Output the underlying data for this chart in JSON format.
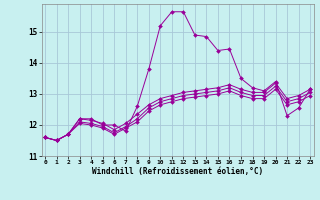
{
  "xlabel": "Windchill (Refroidissement éolien,°C)",
  "background_color": "#c8f0f0",
  "grid_color": "#a8c8d8",
  "line_color": "#990099",
  "x_ticks": [
    0,
    1,
    2,
    3,
    4,
    5,
    6,
    7,
    8,
    9,
    10,
    11,
    12,
    13,
    14,
    15,
    16,
    17,
    18,
    19,
    20,
    21,
    22,
    23
  ],
  "y_ticks": [
    11,
    12,
    13,
    14,
    15
  ],
  "ylim": [
    11.0,
    15.9
  ],
  "xlim": [
    -0.3,
    23.3
  ],
  "lines": [
    [
      11.6,
      11.5,
      11.7,
      12.2,
      12.2,
      12.0,
      12.0,
      11.8,
      12.6,
      13.8,
      15.2,
      15.65,
      15.65,
      14.9,
      14.85,
      14.4,
      14.45,
      13.5,
      13.2,
      13.1,
      13.4,
      12.3,
      12.55,
      13.15
    ],
    [
      11.6,
      11.5,
      11.7,
      12.2,
      12.15,
      12.05,
      11.85,
      12.05,
      12.35,
      12.65,
      12.85,
      12.95,
      13.05,
      13.1,
      13.15,
      13.2,
      13.3,
      13.15,
      13.05,
      13.05,
      13.35,
      12.85,
      12.95,
      13.15
    ],
    [
      11.6,
      11.5,
      11.7,
      12.1,
      12.05,
      11.95,
      11.75,
      11.95,
      12.2,
      12.55,
      12.75,
      12.85,
      12.95,
      13.0,
      13.05,
      13.1,
      13.2,
      13.05,
      12.95,
      12.95,
      13.25,
      12.75,
      12.85,
      13.05
    ],
    [
      11.6,
      11.5,
      11.7,
      12.05,
      12.0,
      11.9,
      11.7,
      11.9,
      12.1,
      12.45,
      12.65,
      12.75,
      12.85,
      12.9,
      12.95,
      13.0,
      13.1,
      12.95,
      12.85,
      12.85,
      13.15,
      12.65,
      12.75,
      12.95
    ]
  ]
}
